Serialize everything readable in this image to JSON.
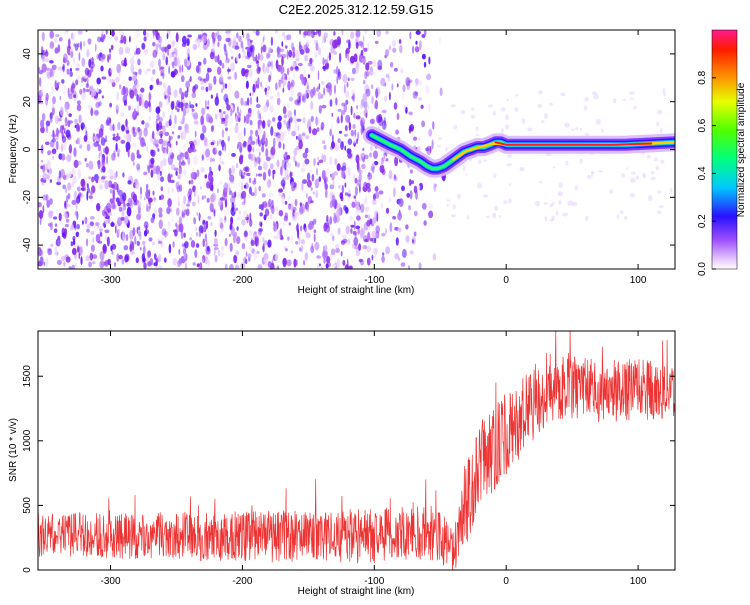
{
  "title": "C2E2.2025.312.12.59.G15",
  "chart_data": [
    {
      "type": "heatmap",
      "xlabel": "Height of straight line (km)",
      "ylabel": "Frequency (Hz)",
      "xlim": [
        -355,
        128
      ],
      "ylim": [
        -50,
        50
      ],
      "xticks": [
        -300,
        -200,
        -100,
        0,
        100
      ],
      "yticks": [
        -40,
        -20,
        0,
        20,
        40
      ],
      "noise_region": {
        "x_range": [
          -355,
          -52
        ],
        "y_range": [
          -50,
          50
        ]
      },
      "ridge": {
        "x": [
          -102,
          -95,
          -88,
          -80,
          -72,
          -65,
          -60,
          -56,
          -52,
          -47,
          -42,
          -37,
          -32,
          -27,
          -22,
          -17,
          -12,
          -8,
          -4,
          0,
          10,
          30,
          60,
          90,
          128
        ],
        "freq": [
          6,
          4,
          2,
          0,
          -3,
          -5,
          -7,
          -8,
          -8,
          -7,
          -5,
          -3,
          -1,
          0,
          1,
          1,
          2,
          3,
          3,
          2,
          2,
          2,
          2,
          2,
          3
        ]
      },
      "colorbar": {
        "label": "Normalized spectral amplitude",
        "range": [
          0.0,
          1.0
        ],
        "ticks": [
          "0.0",
          "0.2",
          "0.4",
          "0.6",
          "0.8"
        ]
      }
    },
    {
      "type": "line",
      "xlabel": "Height of straight line (km)",
      "ylabel": "SNR (10 * v/v)",
      "xlim": [
        -355,
        128
      ],
      "ylim": [
        0,
        1850
      ],
      "xticks": [
        -300,
        -200,
        -100,
        0,
        100
      ],
      "yticks": [
        0,
        500,
        1000,
        1500
      ],
      "color": "#ee3333",
      "trend": {
        "x": [
          -355,
          -200,
          -100,
          -60,
          -50,
          -40,
          -30,
          -20,
          -10,
          0,
          10,
          20,
          30,
          40,
          60,
          80,
          100,
          128
        ],
        "y": [
          270,
          260,
          260,
          300,
          250,
          140,
          500,
          850,
          950,
          1050,
          1150,
          1280,
          1400,
          1430,
          1400,
          1380,
          1400,
          1390
        ]
      },
      "spread": {
        "x": [
          -355,
          -60,
          -50,
          -40,
          -30,
          -10,
          0,
          30,
          60,
          128
        ],
        "y": [
          170,
          220,
          230,
          180,
          320,
          350,
          320,
          280,
          250,
          230
        ]
      }
    }
  ]
}
